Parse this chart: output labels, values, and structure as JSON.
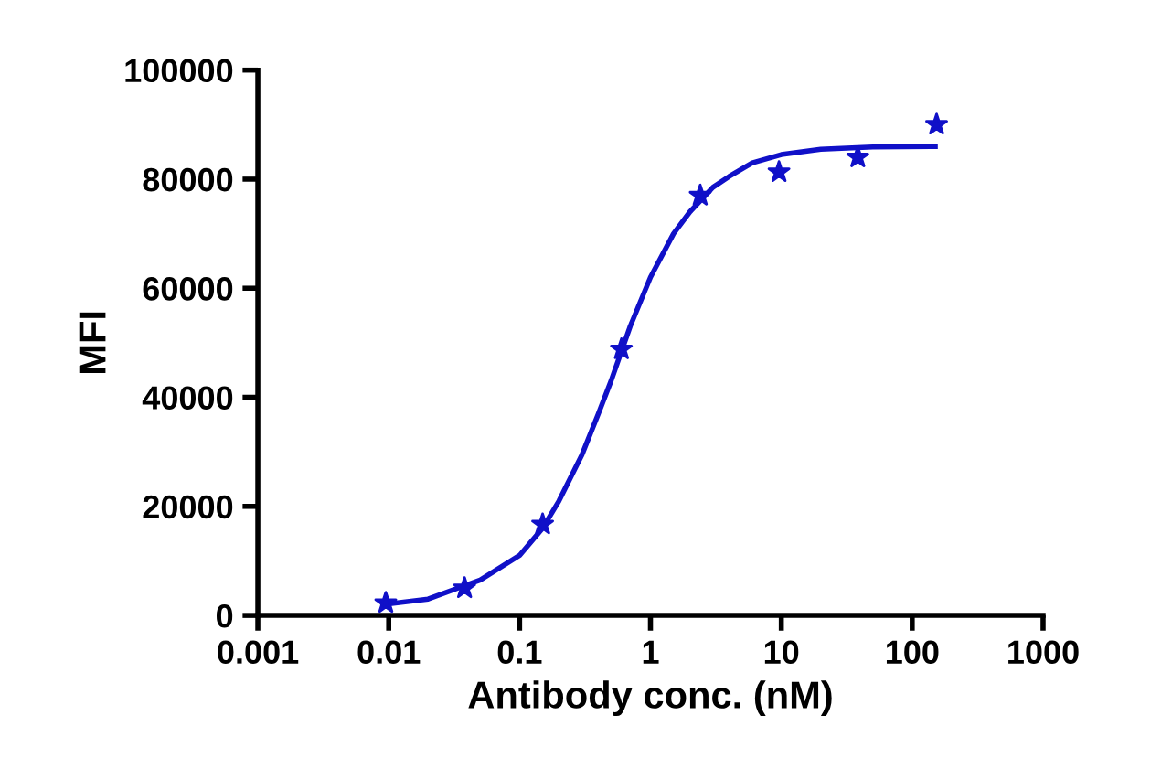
{
  "chart_data": {
    "type": "scatter",
    "xlabel": "Antibody conc. (nM)",
    "ylabel": "MFI",
    "log": "x",
    "xlim": [
      0.001,
      1000
    ],
    "xticks": [
      0.001,
      0.01,
      0.1,
      1,
      10,
      100,
      1000
    ],
    "ylim": [
      0,
      100000
    ],
    "yticks": [
      0,
      20000,
      40000,
      60000,
      80000,
      100000
    ],
    "grid": false,
    "legend": false,
    "series": [
      {
        "marker": "star",
        "color": "#1010c8",
        "x": [
          0.0095,
          0.038,
          0.15,
          0.6,
          2.4,
          9.6,
          38.4,
          153.6
        ],
        "values": [
          2300,
          5000,
          16700,
          48800,
          77000,
          81300,
          84000,
          90000
        ]
      },
      {
        "type": "line",
        "color": "#1010c8",
        "line_style": "solid",
        "x": [
          0.009,
          0.02,
          0.05,
          0.1,
          0.15,
          0.2,
          0.3,
          0.4,
          0.5,
          0.7,
          1,
          1.5,
          2,
          3,
          4,
          6,
          10,
          20,
          50,
          150
        ],
        "values": [
          2000,
          3000,
          6500,
          11000,
          16000,
          21000,
          29500,
          37000,
          43000,
          53000,
          62000,
          70000,
          74000,
          78500,
          80500,
          83000,
          84500,
          85500,
          85900,
          86000
        ]
      }
    ]
  }
}
